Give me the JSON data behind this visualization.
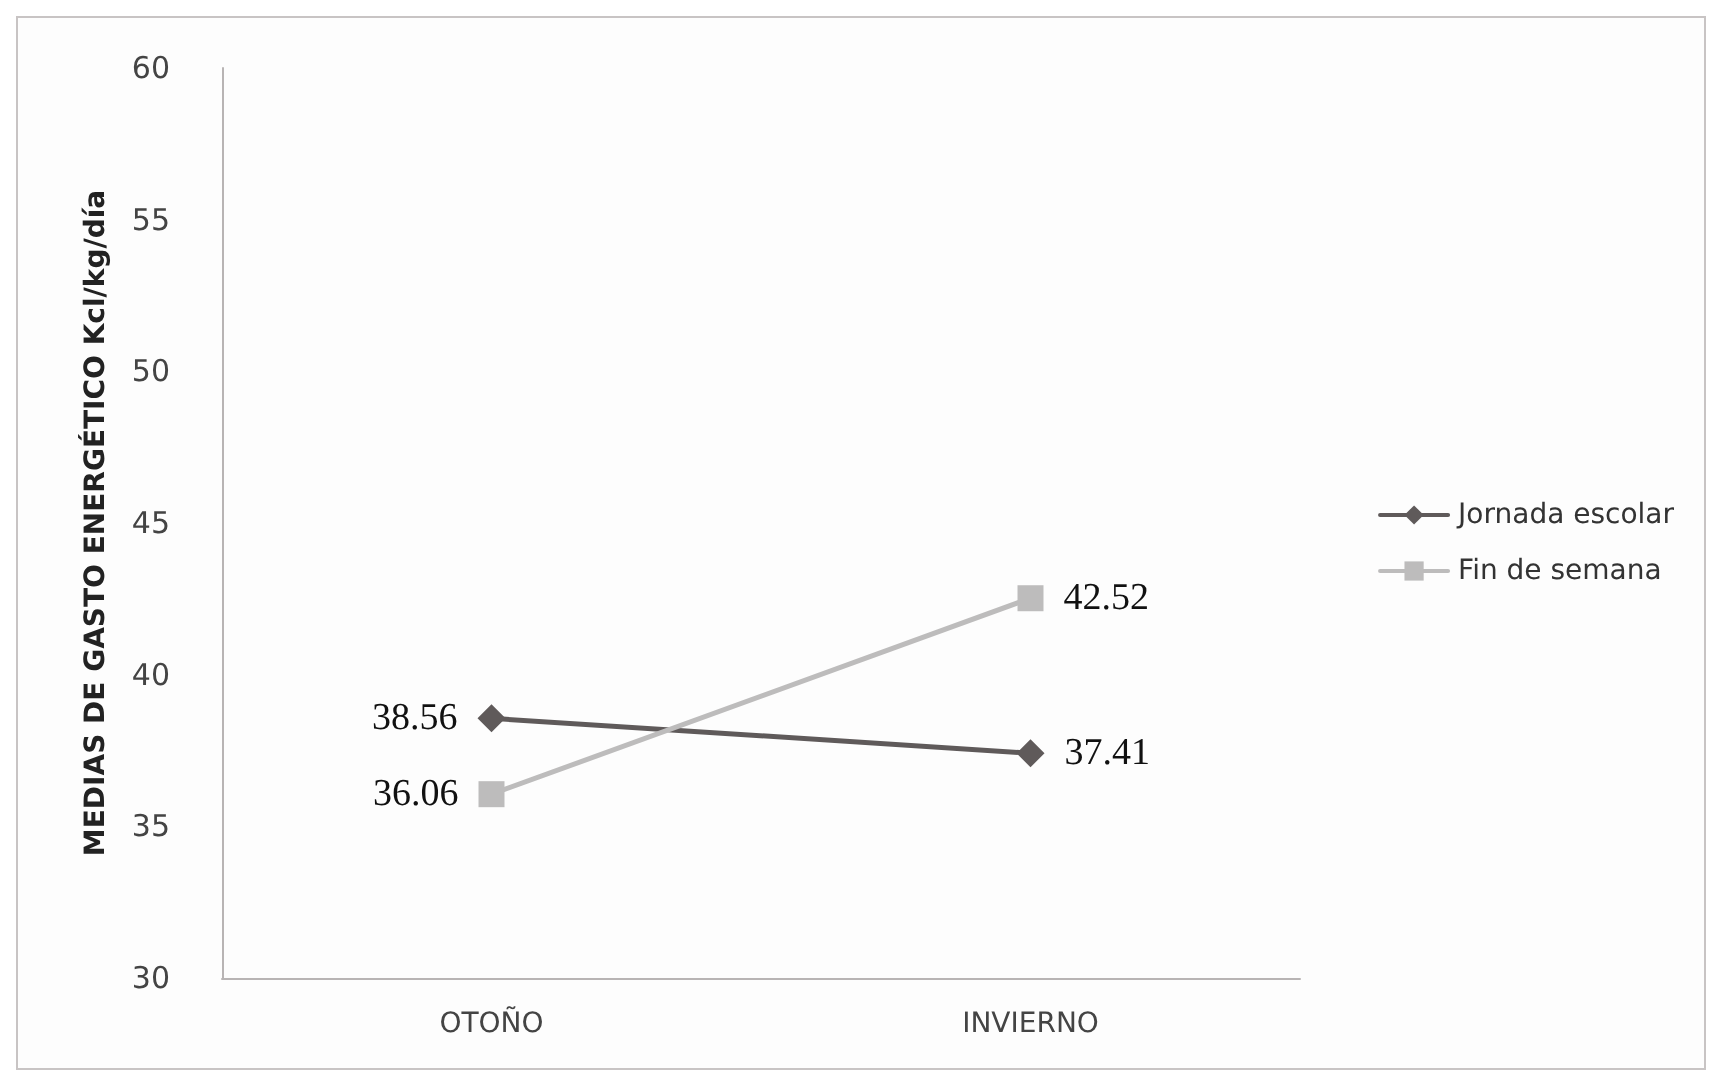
{
  "chart_data": {
    "type": "line",
    "ylabel": "MEDIAS DE GASTO ENERGÉTICO Kcl/kg/día",
    "categories": [
      "OTOÑO",
      "INVIERNO"
    ],
    "series": [
      {
        "name": "Jornada escolar",
        "color": "#5f5a5a",
        "marker": "diamond",
        "values": [
          38.56,
          37.41
        ]
      },
      {
        "name": "Fin de semana",
        "color": "#bdbcbc",
        "marker": "square",
        "values": [
          36.06,
          42.52
        ]
      }
    ],
    "ylim": [
      30,
      60
    ],
    "yticks": [
      30,
      35,
      40,
      45,
      50,
      55,
      60
    ],
    "grid": false,
    "legend": "right",
    "data_labels": true
  }
}
